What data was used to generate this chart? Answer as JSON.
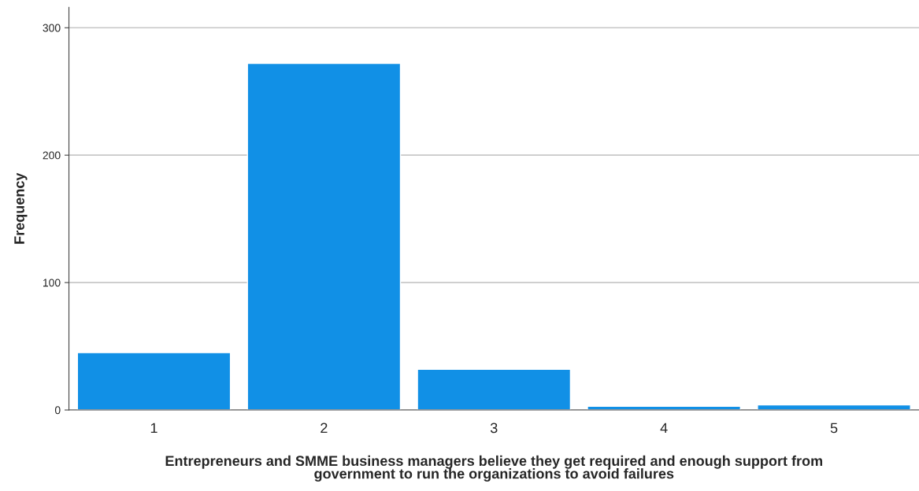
{
  "chart_data": {
    "type": "bar",
    "categories": [
      "1",
      "2",
      "3",
      "4",
      "5"
    ],
    "values": [
      45,
      272,
      32,
      3,
      4
    ],
    "color": "#1190e6",
    "xlabel": "Entrepreneurs and SMME business managers believe they get required and enough support from\ngovernment to run the organizations to avoid failures",
    "ylabel": "Frequency",
    "ylim": [
      0,
      316
    ],
    "yticks": [
      0,
      100,
      200,
      300
    ],
    "grid": "y"
  }
}
